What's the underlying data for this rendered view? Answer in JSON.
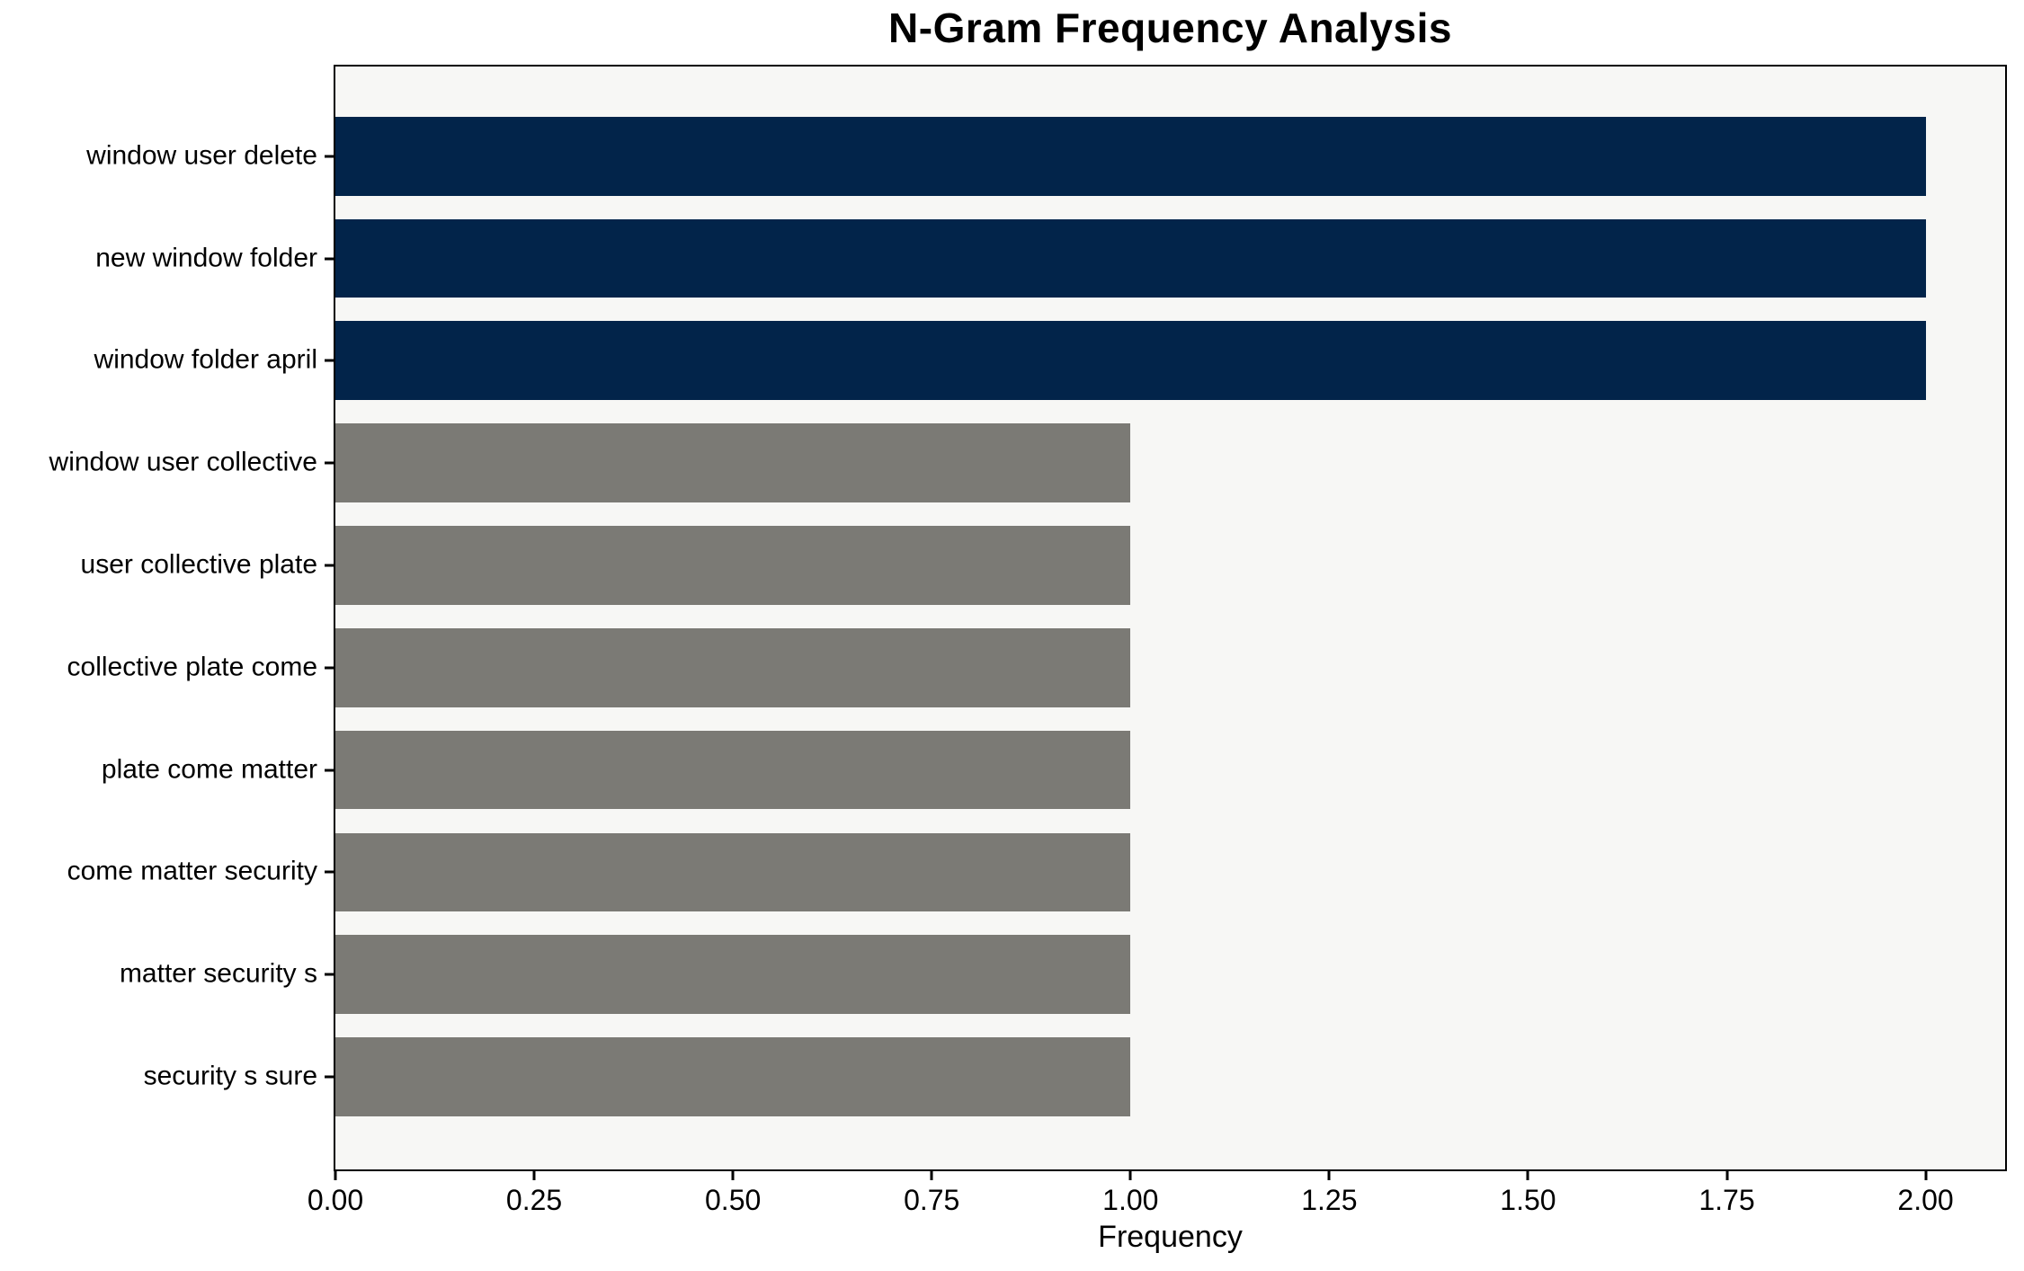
{
  "chart_data": {
    "type": "bar",
    "orientation": "horizontal",
    "title": "N-Gram Frequency Analysis",
    "xlabel": "Frequency",
    "ylabel": "",
    "categories": [
      "window user delete",
      "new window folder",
      "window folder april",
      "window user collective",
      "user collective plate",
      "collective plate come",
      "plate come matter",
      "come matter security",
      "matter security s",
      "security s sure"
    ],
    "values": [
      2,
      2,
      2,
      1,
      1,
      1,
      1,
      1,
      1,
      1
    ],
    "bar_colors": [
      "#02244a",
      "#02244a",
      "#02244a",
      "#7b7a75",
      "#7b7a75",
      "#7b7a75",
      "#7b7a75",
      "#7b7a75",
      "#7b7a75",
      "#7b7a75"
    ],
    "xlim": [
      0,
      2.1
    ],
    "xticks": [
      0,
      0.25,
      0.5,
      0.75,
      1.0,
      1.25,
      1.5,
      1.75,
      2.0
    ],
    "xtick_labels": [
      "0.00",
      "0.25",
      "0.50",
      "0.75",
      "1.00",
      "1.25",
      "1.50",
      "1.75",
      "2.00"
    ],
    "grid": false,
    "legend": null,
    "colors": {
      "highlight": "#02244a",
      "default": "#7b7a75",
      "plot_background": "#f7f7f5",
      "figure_background": "#ffffff",
      "spine": "#000000",
      "text": "#000000"
    }
  }
}
